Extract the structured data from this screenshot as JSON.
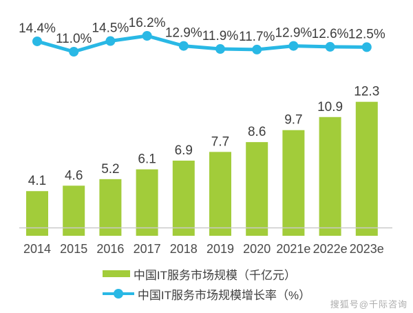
{
  "chart_data": {
    "type": "bar",
    "subtype": "bar-line-combo",
    "categories": [
      "2014",
      "2015",
      "2016",
      "2017",
      "2018",
      "2019",
      "2020",
      "2021e",
      "2022e",
      "2023e"
    ],
    "series": [
      {
        "name": "中国IT服务市场规模（千亿元）",
        "type": "bar",
        "color": "#a2cc3a",
        "values": [
          4.1,
          4.6,
          5.2,
          6.1,
          6.9,
          7.7,
          8.6,
          9.7,
          10.9,
          12.3
        ],
        "labels": [
          "4.1",
          "4.6",
          "5.2",
          "6.1",
          "6.9",
          "7.7",
          "8.6",
          "9.7",
          "10.9",
          "12.3"
        ],
        "unit": "千亿元"
      },
      {
        "name": "中国IT服务市场规模增长率（%）",
        "type": "line",
        "color": "#29b8e5",
        "values": [
          14.4,
          11.0,
          14.5,
          16.2,
          12.9,
          11.9,
          11.7,
          12.9,
          12.6,
          12.5
        ],
        "labels": [
          "14.4%",
          "11.0%",
          "14.5%",
          "16.2%",
          "12.9%",
          "11.9%",
          "11.7%",
          "12.9%",
          "12.6%",
          "12.5%"
        ],
        "unit": "%"
      }
    ],
    "title": "",
    "xlabel": "",
    "ylabel": "",
    "grid": false,
    "legend_position": "bottom",
    "axis_color": "#c9c9c9",
    "value_label_color": "#3c3c3c",
    "tick_label_color": "#4a4a4a"
  },
  "watermark": "搜狐号@千际咨询"
}
